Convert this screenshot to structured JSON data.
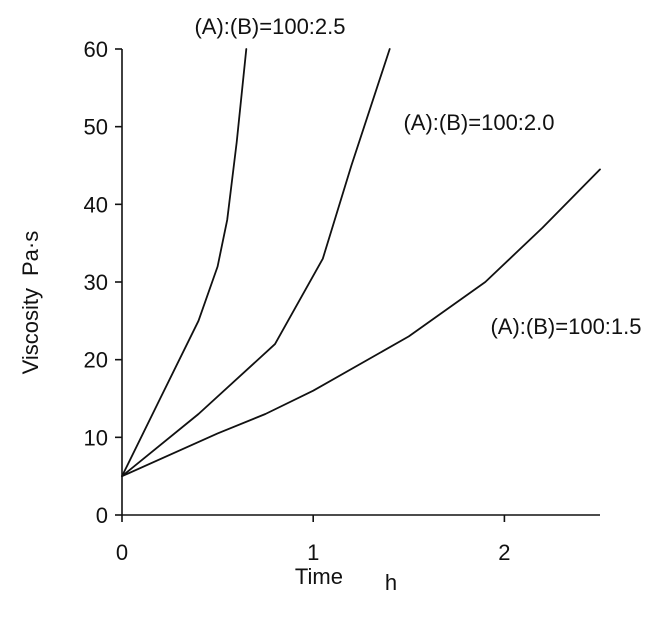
{
  "chart_data": {
    "type": "line",
    "xlabel": "Time",
    "xunit": "h",
    "ylabel": "Viscosity",
    "yunit": "Pa·s",
    "xlim": [
      0,
      2.5
    ],
    "ylim": [
      0,
      60
    ],
    "x_ticks": [
      "0",
      "1",
      "2"
    ],
    "y_ticks": [
      "0",
      "10",
      "20",
      "30",
      "40",
      "50",
      "60"
    ],
    "grid": false,
    "series": [
      {
        "name": "(A):(B)=100:2.5",
        "x": [
          0,
          0.2,
          0.4,
          0.5,
          0.55,
          0.6,
          0.65
        ],
        "y": [
          5,
          15,
          25,
          32,
          38,
          48,
          60
        ]
      },
      {
        "name": "(A):(B)=100:2.0",
        "x": [
          0,
          0.4,
          0.8,
          1.05,
          1.2,
          1.4
        ],
        "y": [
          5,
          13,
          22,
          33,
          45,
          60
        ]
      },
      {
        "name": "(A):(B)=100:1.5",
        "x": [
          0,
          0.5,
          0.75,
          1.0,
          1.5,
          1.9,
          2.2,
          2.5
        ],
        "y": [
          5,
          10.5,
          13,
          16,
          23,
          30,
          37,
          44.5
        ]
      }
    ]
  }
}
